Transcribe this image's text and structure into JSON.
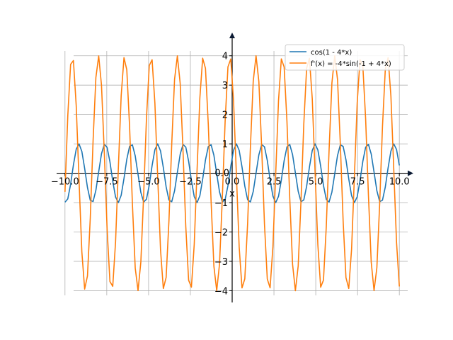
{
  "chart_data": {
    "type": "line",
    "title": "",
    "xlabel": "x",
    "ylabel": "",
    "xlim": [
      -10.5,
      10.5
    ],
    "ylim": [
      -4.4,
      4.5
    ],
    "grid": true,
    "legend_position": "top-right",
    "x_ticks": [
      -10.0,
      -7.5,
      -5.0,
      -2.5,
      0.0,
      2.5,
      5.0,
      7.5,
      10.0
    ],
    "x_tick_labels": [
      "−10.0",
      "−7.5",
      "−5.0",
      "−2.5",
      "0.0",
      "2.5",
      "5.0",
      "7.5",
      "10.0"
    ],
    "y_ticks": [
      -4,
      -3,
      -2,
      -1,
      1,
      2,
      3,
      4
    ],
    "y_tick_labels": [
      "−4",
      "−3",
      "−2",
      "−1",
      "1",
      "2",
      "3",
      "4"
    ],
    "x_range": [
      -10,
      10
    ],
    "samples": 120,
    "series": [
      {
        "name": "cos(1 - 4*x)",
        "color": "#1f77b4",
        "expression": "cos(1 - 4*x)"
      },
      {
        "name": "f'(x) = -4*sin(-1 + 4*x)",
        "color": "#ff7f0e",
        "expression": "-4*sin(-1 + 4*x)"
      }
    ]
  }
}
